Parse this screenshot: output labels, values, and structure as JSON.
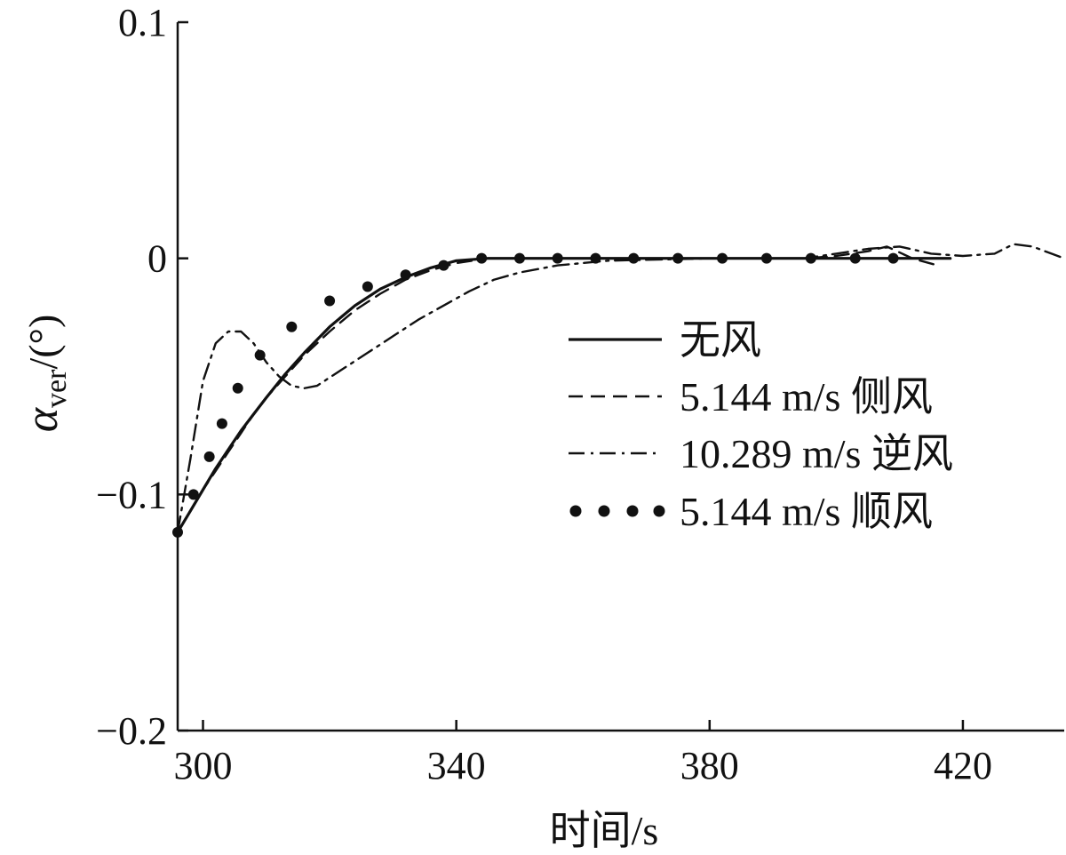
{
  "chart_data": {
    "type": "line",
    "xlabel": "时间/s",
    "ylabel_symbol": "α",
    "ylabel_subscript": "ver",
    "ylabel_unit": "/(°)",
    "xlim": [
      296,
      436
    ],
    "ylim": [
      -0.2,
      0.1
    ],
    "xticks": [
      300,
      340,
      380,
      420
    ],
    "xtick_labels": [
      "300",
      "340",
      "380",
      "420"
    ],
    "yticks": [
      0.1,
      0,
      -0.1,
      -0.2
    ],
    "ytick_labels": [
      "0.1",
      "0",
      "−0.1",
      "−0.2"
    ],
    "grid": false,
    "legend_position": "right",
    "series": [
      {
        "name": "无风",
        "style": "solid",
        "x": [
          296,
          298,
          300,
          302,
          304,
          306,
          308,
          310,
          313,
          316,
          320,
          324,
          328,
          332,
          336,
          340,
          345,
          350,
          360,
          380,
          400,
          418
        ],
        "y": [
          -0.116,
          -0.107,
          -0.098,
          -0.089,
          -0.081,
          -0.073,
          -0.066,
          -0.059,
          -0.049,
          -0.04,
          -0.029,
          -0.02,
          -0.013,
          -0.008,
          -0.004,
          -0.001,
          0.0,
          0.0,
          0.0,
          0.0,
          0.0,
          0.0
        ]
      },
      {
        "name": "5.144 m/s 侧风",
        "style": "dashed",
        "x": [
          296,
          298,
          300,
          302,
          304,
          306,
          308,
          310,
          313,
          316,
          320,
          324,
          328,
          332,
          336,
          340,
          345,
          350,
          360,
          380,
          395,
          400,
          405,
          408,
          412,
          416
        ],
        "y": [
          -0.116,
          -0.107,
          -0.098,
          -0.09,
          -0.082,
          -0.074,
          -0.066,
          -0.059,
          -0.05,
          -0.041,
          -0.031,
          -0.022,
          -0.015,
          -0.009,
          -0.005,
          -0.002,
          0.0,
          0.0,
          0.0,
          0.0,
          0.0,
          0.001,
          0.003,
          0.005,
          0.0,
          -0.003
        ]
      },
      {
        "name": "10.289 m/s 逆风",
        "style": "dashdot",
        "x": [
          296,
          298,
          300,
          302,
          304,
          306,
          308,
          310,
          312,
          314,
          316,
          318,
          322,
          326,
          330,
          334,
          338,
          342,
          346,
          350,
          356,
          364,
          380,
          395,
          400,
          405,
          410,
          415,
          420,
          425,
          428,
          431,
          434,
          436
        ],
        "y": [
          -0.116,
          -0.085,
          -0.052,
          -0.036,
          -0.031,
          -0.031,
          -0.036,
          -0.044,
          -0.05,
          -0.054,
          -0.055,
          -0.054,
          -0.047,
          -0.04,
          -0.033,
          -0.026,
          -0.02,
          -0.014,
          -0.009,
          -0.006,
          -0.003,
          -0.001,
          0.0,
          0.0,
          0.002,
          0.004,
          0.005,
          0.002,
          0.001,
          0.002,
          0.006,
          0.005,
          0.002,
          0.0
        ]
      },
      {
        "name": "5.144 m/s 顺风",
        "style": "dotted",
        "x": [
          296,
          298.5,
          301,
          303,
          305.5,
          309,
          314,
          320,
          326,
          332,
          338,
          344,
          350,
          356,
          362,
          368,
          375,
          382,
          389,
          396,
          403,
          409
        ],
        "y": [
          -0.116,
          -0.1,
          -0.084,
          -0.07,
          -0.055,
          -0.041,
          -0.029,
          -0.018,
          -0.012,
          -0.007,
          -0.003,
          0.0,
          0.0,
          0.0,
          0.0,
          0.0,
          0.0,
          0.0,
          0.0,
          0.0,
          0.0,
          0.0
        ]
      }
    ]
  }
}
